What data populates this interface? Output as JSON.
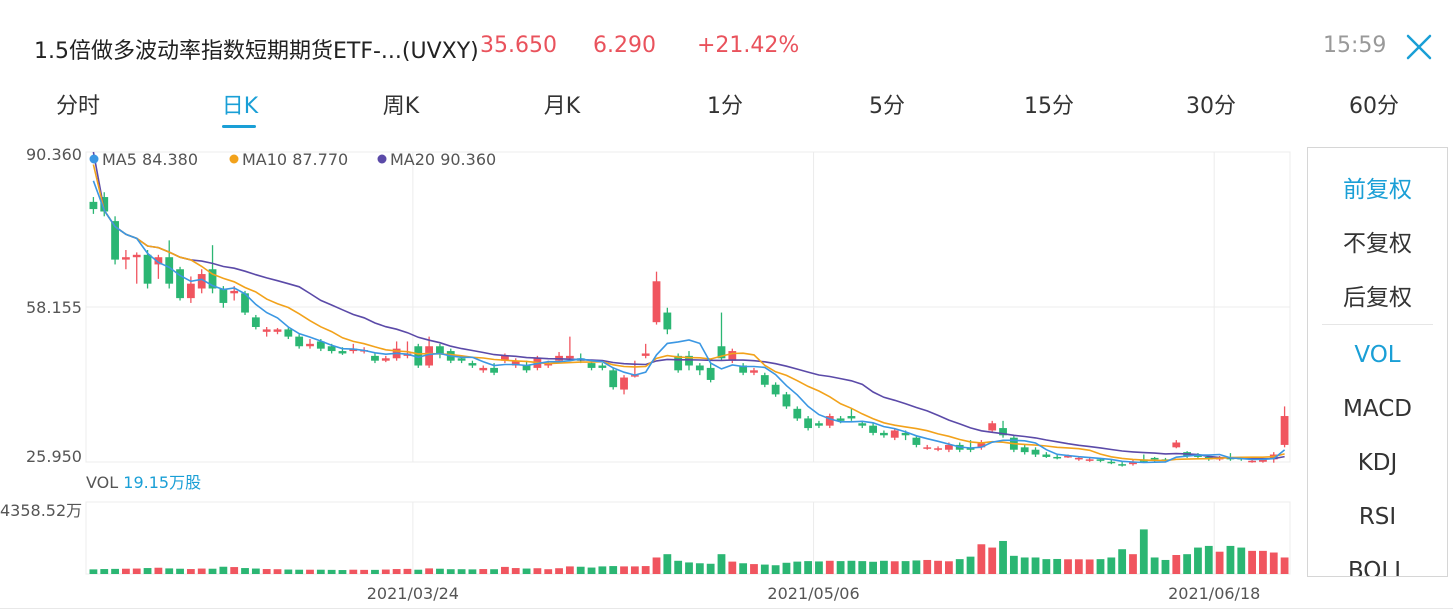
{
  "header": {
    "stock_name": "1.5倍做多波动率指数短期期货ETF-...(UVXY)",
    "price": "35.650",
    "change": "6.290",
    "change_pct": "+21.42%",
    "time": "15:59",
    "close_icon": "close-icon"
  },
  "tabs": [
    {
      "label": "分时",
      "active": false
    },
    {
      "label": "日K",
      "active": true
    },
    {
      "label": "周K",
      "active": false
    },
    {
      "label": "月K",
      "active": false
    },
    {
      "label": "1分",
      "active": false
    },
    {
      "label": "5分",
      "active": false
    },
    {
      "label": "15分",
      "active": false
    },
    {
      "label": "30分",
      "active": false
    },
    {
      "label": "60分",
      "active": false
    }
  ],
  "side_panel": {
    "adjust": [
      {
        "label": "前复权",
        "active": true
      },
      {
        "label": "不复权",
        "active": false
      },
      {
        "label": "后复权",
        "active": false
      }
    ],
    "indicators": [
      {
        "label": "VOL",
        "active": true
      },
      {
        "label": "MACD",
        "active": false
      },
      {
        "label": "KDJ",
        "active": false
      },
      {
        "label": "RSI",
        "active": false
      },
      {
        "label": "BOLL",
        "active": false
      }
    ]
  },
  "colors": {
    "up": "#f0555f",
    "down": "#2bb673",
    "ma5": "#3b97e3",
    "ma10": "#f2a21b",
    "ma20": "#5b4aa8",
    "accent": "#1a9fd6"
  },
  "chart_data": {
    "type": "candlestick",
    "price_axis": {
      "top": "90.360",
      "mid": "58.155",
      "bottom": "25.950",
      "ylim": [
        25.95,
        90.36
      ]
    },
    "volume_axis": {
      "max_label": "4358.52万",
      "ylim": [
        0,
        4358.52
      ]
    },
    "legend": [
      {
        "name": "MA5",
        "value": "84.380"
      },
      {
        "name": "MA10",
        "value": "87.770"
      },
      {
        "name": "MA20",
        "value": "90.360"
      }
    ],
    "vol_label": "VOL",
    "vol_value": "19.15万股",
    "dates": [
      "2021/03/24",
      "2021/05/06",
      "2021/06/18"
    ],
    "candles": [
      [
        80.0,
        78.5,
        81.0,
        77.5
      ],
      [
        81.0,
        78.0,
        82.0,
        77.0
      ],
      [
        76.0,
        68.0,
        77.0,
        67.0
      ],
      [
        68.0,
        68.5,
        70.0,
        66.0
      ],
      [
        68.5,
        69.0,
        69.5,
        63.0
      ],
      [
        69.0,
        63.0,
        70.0,
        62.0
      ],
      [
        67.0,
        68.5,
        69.0,
        64.0
      ],
      [
        68.5,
        63.0,
        72.0,
        62.0
      ],
      [
        66.0,
        60.0,
        66.5,
        59.5
      ],
      [
        60.0,
        63.0,
        64.5,
        59.0
      ],
      [
        62.0,
        65.0,
        66.0,
        61.0
      ],
      [
        66.0,
        62.0,
        71.0,
        61.0
      ],
      [
        62.0,
        59.0,
        62.5,
        58.0
      ],
      [
        61.0,
        61.5,
        62.5,
        59.5
      ],
      [
        61.0,
        57.0,
        61.5,
        56.5
      ],
      [
        56.0,
        54.0,
        56.5,
        53.5
      ],
      [
        53.0,
        53.5,
        54.0,
        52.0
      ],
      [
        53.0,
        53.5,
        53.8,
        52.5
      ],
      [
        53.5,
        52.0,
        54.0,
        51.5
      ],
      [
        52.0,
        50.0,
        52.5,
        49.5
      ],
      [
        50.0,
        50.5,
        51.5,
        49.5
      ],
      [
        51.0,
        49.5,
        51.5,
        49.0
      ],
      [
        50.0,
        49.0,
        50.5,
        48.5
      ],
      [
        49.0,
        48.5,
        49.8,
        48.2
      ],
      [
        49.0,
        49.5,
        50.5,
        48.5
      ],
      [
        49.0,
        49.2,
        49.8,
        48.5
      ],
      [
        48.0,
        47.0,
        48.5,
        46.5
      ],
      [
        47.0,
        47.5,
        48.0,
        46.7
      ],
      [
        47.5,
        49.5,
        51.0,
        47.0
      ],
      [
        48.0,
        48.5,
        51.0,
        47.5
      ],
      [
        50.0,
        46.0,
        50.5,
        45.5
      ],
      [
        46.0,
        50.0,
        52.0,
        45.5
      ],
      [
        50.0,
        48.5,
        50.5,
        47.5
      ],
      [
        49.0,
        47.0,
        49.5,
        46.5
      ],
      [
        47.5,
        47.0,
        48.0,
        46.5
      ],
      [
        46.5,
        46.0,
        47.0,
        45.5
      ],
      [
        45.0,
        45.5,
        46.0,
        44.5
      ],
      [
        45.5,
        44.5,
        46.5,
        44.0
      ],
      [
        47.0,
        48.0,
        48.5,
        46.5
      ],
      [
        46.0,
        47.0,
        47.5,
        45.5
      ],
      [
        46.0,
        45.0,
        47.0,
        44.5
      ],
      [
        45.5,
        47.5,
        48.0,
        45.0
      ],
      [
        46.0,
        46.5,
        47.0,
        45.5
      ],
      [
        47.0,
        48.0,
        48.8,
        46.5
      ],
      [
        47.5,
        48.0,
        52.0,
        47.0
      ],
      [
        47.5,
        47.0,
        48.5,
        46.5
      ],
      [
        46.5,
        45.5,
        47.0,
        45.0
      ],
      [
        46.0,
        45.5,
        46.5,
        45.0
      ],
      [
        45.0,
        41.5,
        45.5,
        41.0
      ],
      [
        41.0,
        43.5,
        44.0,
        40.0
      ],
      [
        44.0,
        44.0,
        47.0,
        43.5
      ],
      [
        48.0,
        48.5,
        50.5,
        47.5
      ],
      [
        55.0,
        63.5,
        65.5,
        54.5
      ],
      [
        57.0,
        53.5,
        58.0,
        52.5
      ],
      [
        48.0,
        45.0,
        48.5,
        44.5
      ],
      [
        48.0,
        46.0,
        49.0,
        45.0
      ],
      [
        46.0,
        45.0,
        46.5,
        44.0
      ],
      [
        45.5,
        43.0,
        46.5,
        42.5
      ],
      [
        50.0,
        47.5,
        57.0,
        47.0
      ],
      [
        47.0,
        49.0,
        49.5,
        46.5
      ],
      [
        46.0,
        44.5,
        46.5,
        44.0
      ],
      [
        44.5,
        45.0,
        45.5,
        44.0
      ],
      [
        44.0,
        42.0,
        44.5,
        41.5
      ],
      [
        42.0,
        40.0,
        42.5,
        39.5
      ],
      [
        40.0,
        37.5,
        40.5,
        37.0
      ],
      [
        37.0,
        35.0,
        37.5,
        34.5
      ],
      [
        35.0,
        33.0,
        35.5,
        32.5
      ],
      [
        34.0,
        33.5,
        34.5,
        33.0
      ],
      [
        33.5,
        35.5,
        36.0,
        33.0
      ],
      [
        35.0,
        34.5,
        35.5,
        34.0
      ],
      [
        35.5,
        35.0,
        37.0,
        34.5
      ],
      [
        34.0,
        33.5,
        34.5,
        33.0
      ],
      [
        33.5,
        32.0,
        34.0,
        31.5
      ],
      [
        32.0,
        31.5,
        32.5,
        31.0
      ],
      [
        31.0,
        32.5,
        33.0,
        30.5
      ],
      [
        32.0,
        31.5,
        32.5,
        30.5
      ],
      [
        31.0,
        29.5,
        31.5,
        29.0
      ],
      [
        29.0,
        29.0,
        29.5,
        28.5
      ],
      [
        28.5,
        28.8,
        29.2,
        28.2
      ],
      [
        28.5,
        29.5,
        30.0,
        28.0
      ],
      [
        29.5,
        28.5,
        30.0,
        28.0
      ],
      [
        28.8,
        28.5,
        30.5,
        28.0
      ],
      [
        29.0,
        29.8,
        30.5,
        28.5
      ],
      [
        32.5,
        34.0,
        34.5,
        32.0
      ],
      [
        33.0,
        31.5,
        34.5,
        31.0
      ],
      [
        31.0,
        28.5,
        31.5,
        28.0
      ],
      [
        29.0,
        28.0,
        29.5,
        27.5
      ],
      [
        28.5,
        27.5,
        29.0,
        27.0
      ],
      [
        27.5,
        27.0,
        28.0,
        26.8
      ],
      [
        27.0,
        26.8,
        27.5,
        26.5
      ],
      [
        27.0,
        27.2,
        27.5,
        26.8
      ],
      [
        26.5,
        26.8,
        27.0,
        26.2
      ],
      [
        26.5,
        26.5,
        27.0,
        26.0
      ],
      [
        26.5,
        26.2,
        26.8,
        25.9
      ],
      [
        26.0,
        25.8,
        26.5,
        25.5
      ],
      [
        25.5,
        25.2,
        26.0,
        25.0
      ],
      [
        25.5,
        26.0,
        26.5,
        25.2
      ],
      [
        26.5,
        26.0,
        27.5,
        25.8
      ],
      [
        26.8,
        26.5,
        27.0,
        26.0
      ],
      [
        26.5,
        26.2,
        26.8,
        26.0
      ],
      [
        29.0,
        30.0,
        30.5,
        28.8
      ],
      [
        28.0,
        27.2,
        28.2,
        26.8
      ],
      [
        27.5,
        27.0,
        27.8,
        26.8
      ],
      [
        27.0,
        26.5,
        27.5,
        26.2
      ],
      [
        26.5,
        26.8,
        27.2,
        26.2
      ],
      [
        27.0,
        26.5,
        27.8,
        26.2
      ],
      [
        26.8,
        26.5,
        27.0,
        26.2
      ],
      [
        26.0,
        26.2,
        26.5,
        25.8
      ],
      [
        26.0,
        26.6,
        27.0,
        25.8
      ],
      [
        26.5,
        27.5,
        28.0,
        25.8
      ],
      [
        29.5,
        35.5,
        37.5,
        29.0
      ]
    ],
    "volumes": [
      280,
      300,
      310,
      320,
      330,
      360,
      380,
      340,
      320,
      300,
      330,
      320,
      440,
      420,
      360,
      330,
      300,
      290,
      270,
      260,
      260,
      260,
      250,
      240,
      260,
      250,
      250,
      270,
      300,
      310,
      260,
      340,
      320,
      290,
      290,
      280,
      300,
      290,
      430,
      360,
      330,
      350,
      290,
      350,
      460,
      440,
      390,
      460,
      480,
      460,
      460,
      480,
      1000,
      1200,
      800,
      700,
      650,
      620,
      1200,
      750,
      650,
      600,
      570,
      530,
      680,
      750,
      780,
      760,
      800,
      780,
      800,
      780,
      740,
      800,
      770,
      780,
      820,
      850,
      800,
      770,
      900,
      1050,
      1800,
      1600,
      2000,
      1100,
      1000,
      1000,
      900,
      910,
      890,
      890,
      880,
      900,
      1000,
      1500,
      1200,
      2700,
      1000,
      850,
      1150,
      1200,
      1600,
      1700,
      1350,
      1700,
      1600,
      1400,
      1400,
      1300,
      1000
    ]
  }
}
